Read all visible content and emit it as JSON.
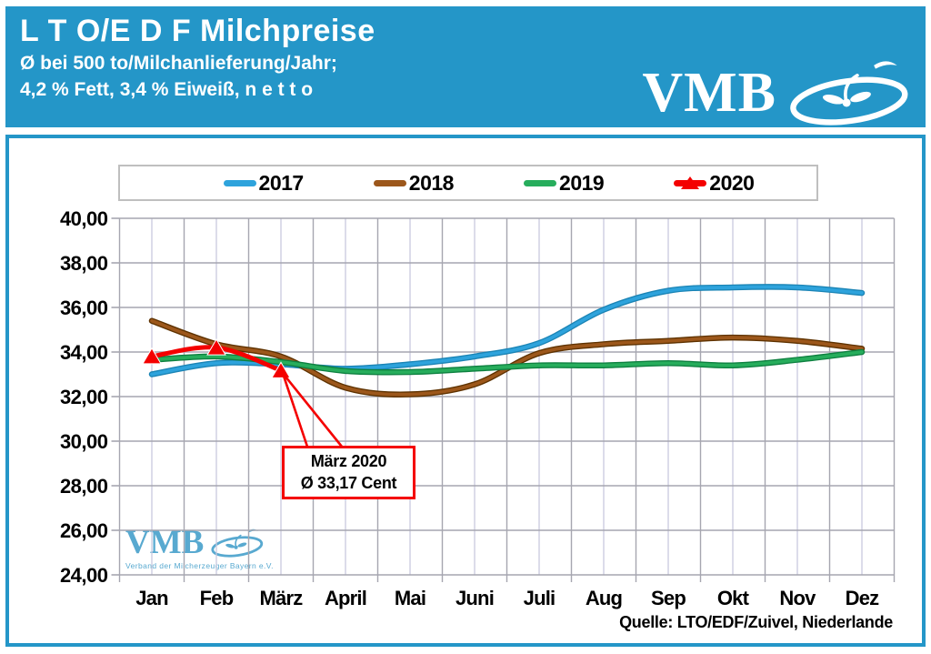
{
  "header": {
    "title": "L T O/E D F Milchpreise",
    "subtitle_line1": "Ø bei 500 to/Milchanlieferung/Jahr;",
    "subtitle_line2": "4,2 % Fett, 3,4 % Eiweiß, n e t t o",
    "logo_text": "VMB"
  },
  "watermark": {
    "logo_text": "VMB",
    "subtext": "Verband der Milcherzeuger Bayern e.V."
  },
  "source_note": "Quelle: LTO/EDF/Zuivel, Niederlande",
  "annotation": {
    "line1": "März  2020",
    "line2": "Ø 33,17 Cent"
  },
  "colors": {
    "header_blue": "#2496C8",
    "grid_major": "#A6A6B0",
    "grid_minor": "#C9C9DE",
    "axis_text": "#000000",
    "legend_border": "#BFBFBF",
    "annotation_red": "#F40000",
    "watermark_blue": "#58A9D0"
  },
  "chart_data": {
    "type": "line",
    "title": "",
    "xlabel": "",
    "ylabel": "",
    "categories": [
      "Jan",
      "Feb",
      "März",
      "April",
      "Mai",
      "Juni",
      "Juli",
      "Aug",
      "Sep",
      "Okt",
      "Nov",
      "Dez"
    ],
    "y_ticks": [
      "40,00",
      "38,00",
      "36,00",
      "34,00",
      "32,00",
      "30,00",
      "28,00",
      "26,00",
      "24,00"
    ],
    "ylim": [
      24,
      40
    ],
    "grid": true,
    "legend_position": "top",
    "series": [
      {
        "name": "2017",
        "color": "#2EA3DC",
        "edge_color": "#1B84B5",
        "values": [
          33.0,
          33.5,
          33.45,
          33.25,
          33.45,
          33.8,
          34.4,
          35.9,
          36.75,
          36.9,
          36.9,
          36.65
        ]
      },
      {
        "name": "2018",
        "color": "#9C571B",
        "edge_color": "#5E3200",
        "values": [
          35.4,
          34.35,
          33.8,
          32.4,
          32.1,
          32.55,
          33.95,
          34.35,
          34.5,
          34.65,
          34.5,
          34.15
        ]
      },
      {
        "name": "2019",
        "color": "#27AD5C",
        "edge_color": "#0E8040",
        "values": [
          33.65,
          33.8,
          33.55,
          33.15,
          33.1,
          33.25,
          33.4,
          33.4,
          33.5,
          33.4,
          33.65,
          34.0
        ]
      },
      {
        "name": "2020",
        "color": "#F40000",
        "marker": "triangle",
        "values": [
          33.8,
          34.2,
          33.17
        ]
      }
    ],
    "annotation_target": {
      "series": "2020",
      "category": "März",
      "value": 33.17
    }
  }
}
